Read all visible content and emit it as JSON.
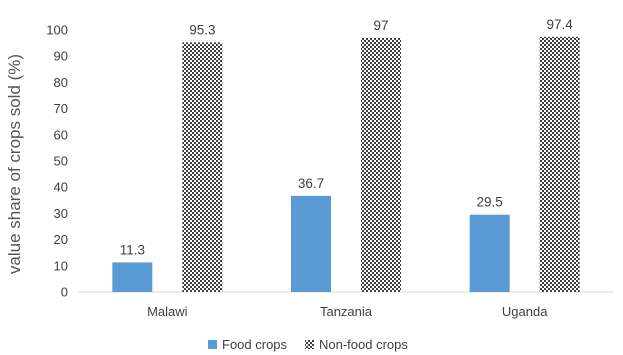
{
  "chart_data": {
    "type": "bar",
    "categories": [
      "Malawi",
      "Tanzania",
      "Uganda"
    ],
    "series": [
      {
        "name": "Food crops",
        "values": [
          11.3,
          36.7,
          29.5
        ],
        "color": "#5b9bd5",
        "fill": "solid"
      },
      {
        "name": "Non-food crops",
        "values": [
          95.3,
          97,
          97.4
        ],
        "color": "#404040",
        "fill": "checkered"
      }
    ],
    "data_labels": [
      [
        "11.3",
        "36.7",
        "29.5"
      ],
      [
        "95.3",
        "97",
        "97.4"
      ]
    ],
    "title": "",
    "xlabel": "",
    "ylabel": "value share of crops sold (%)",
    "ylim": [
      0,
      100
    ],
    "yticks": [
      0,
      10,
      20,
      30,
      40,
      50,
      60,
      70,
      80,
      90,
      100
    ],
    "grid": false,
    "legend_position": "bottom"
  }
}
